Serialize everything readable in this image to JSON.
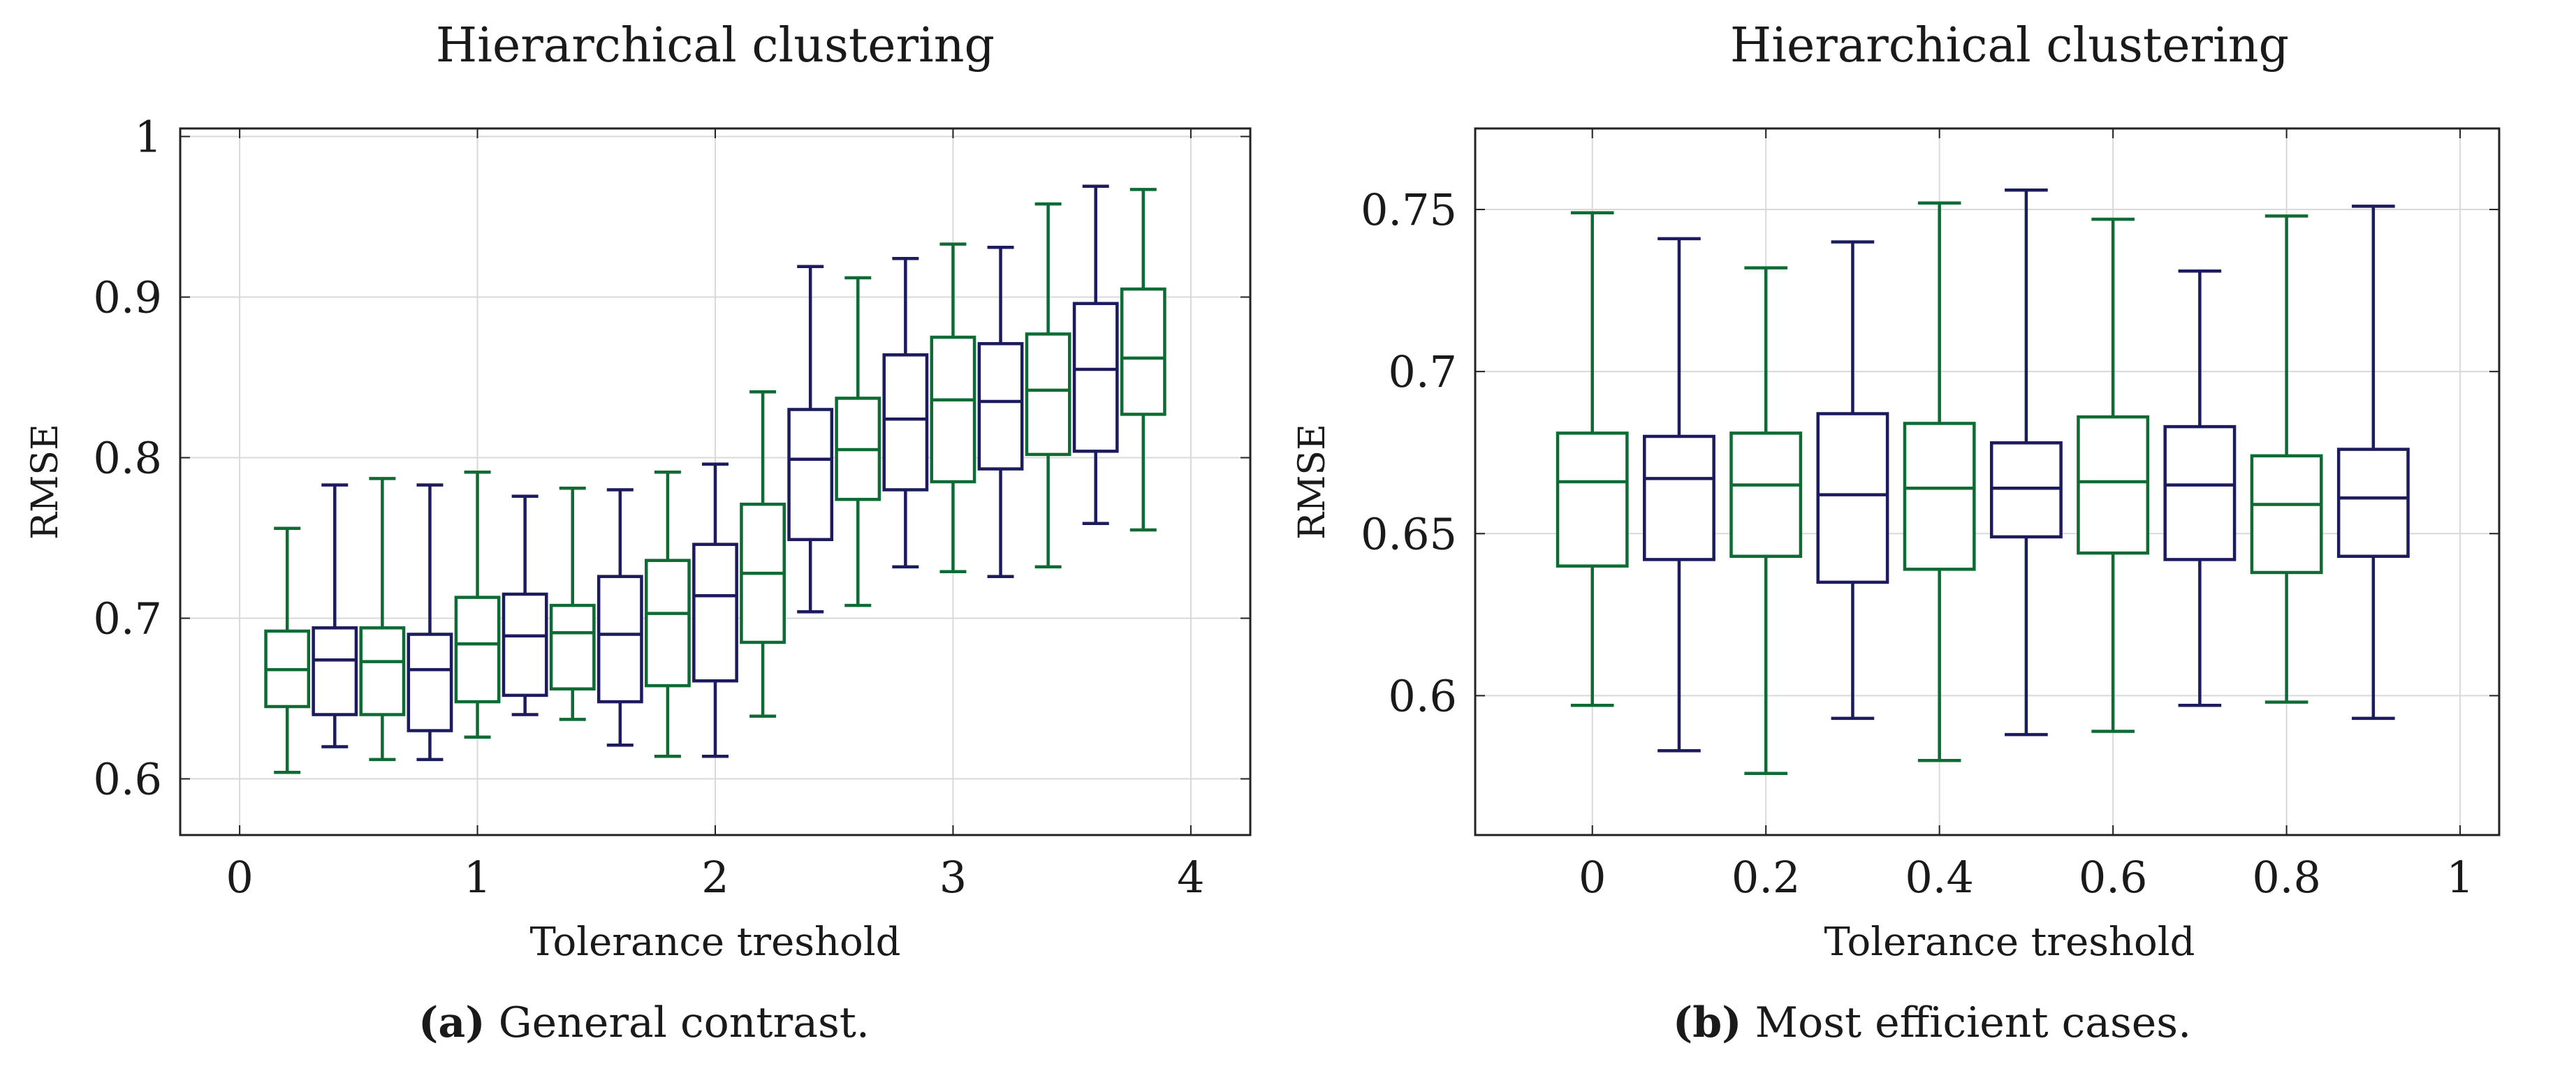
{
  "colors": {
    "green": "#0e6b34",
    "navy": "#1c1b5e",
    "grid": "#d9d9d9",
    "frame": "#222222"
  },
  "chart_data": [
    {
      "type": "box",
      "title": "Hierarchical clustering",
      "xlabel": "Tolerance treshold",
      "ylabel": "RMSE",
      "xlim": [
        -0.25,
        4.25
      ],
      "ylim": [
        0.565,
        1.005
      ],
      "xticks": [
        0,
        1,
        2,
        3,
        4
      ],
      "xtick_labels": [
        "0",
        "1",
        "2",
        "3",
        "4"
      ],
      "yticks": [
        0.6,
        0.7,
        0.8,
        0.9,
        1.0
      ],
      "ytick_labels": [
        "0.6",
        "0.7",
        "0.8",
        "0.9",
        "1"
      ],
      "caption_label": "(a)",
      "caption_text": "General contrast.",
      "box_half_width": 0.09,
      "boxes": [
        {
          "x": 0.2,
          "color": "green",
          "min": 0.604,
          "q1": 0.645,
          "median": 0.668,
          "q3": 0.692,
          "max": 0.756
        },
        {
          "x": 0.4,
          "color": "navy",
          "min": 0.62,
          "q1": 0.64,
          "median": 0.674,
          "q3": 0.694,
          "max": 0.783
        },
        {
          "x": 0.6,
          "color": "green",
          "min": 0.612,
          "q1": 0.64,
          "median": 0.673,
          "q3": 0.694,
          "max": 0.787
        },
        {
          "x": 0.8,
          "color": "navy",
          "min": 0.612,
          "q1": 0.63,
          "median": 0.668,
          "q3": 0.69,
          "max": 0.783
        },
        {
          "x": 1.0,
          "color": "green",
          "min": 0.626,
          "q1": 0.648,
          "median": 0.684,
          "q3": 0.713,
          "max": 0.791
        },
        {
          "x": 1.2,
          "color": "navy",
          "min": 0.64,
          "q1": 0.652,
          "median": 0.689,
          "q3": 0.715,
          "max": 0.776
        },
        {
          "x": 1.4,
          "color": "green",
          "min": 0.637,
          "q1": 0.656,
          "median": 0.691,
          "q3": 0.708,
          "max": 0.781
        },
        {
          "x": 1.6,
          "color": "navy",
          "min": 0.621,
          "q1": 0.648,
          "median": 0.69,
          "q3": 0.726,
          "max": 0.78
        },
        {
          "x": 1.8,
          "color": "green",
          "min": 0.614,
          "q1": 0.658,
          "median": 0.703,
          "q3": 0.736,
          "max": 0.791
        },
        {
          "x": 2.0,
          "color": "navy",
          "min": 0.614,
          "q1": 0.661,
          "median": 0.714,
          "q3": 0.746,
          "max": 0.796
        },
        {
          "x": 2.2,
          "color": "green",
          "min": 0.639,
          "q1": 0.685,
          "median": 0.728,
          "q3": 0.771,
          "max": 0.841
        },
        {
          "x": 2.4,
          "color": "navy",
          "min": 0.704,
          "q1": 0.749,
          "median": 0.799,
          "q3": 0.83,
          "max": 0.919
        },
        {
          "x": 2.6,
          "color": "green",
          "min": 0.708,
          "q1": 0.774,
          "median": 0.805,
          "q3": 0.837,
          "max": 0.912
        },
        {
          "x": 2.8,
          "color": "navy",
          "min": 0.732,
          "q1": 0.78,
          "median": 0.824,
          "q3": 0.864,
          "max": 0.924
        },
        {
          "x": 3.0,
          "color": "green",
          "min": 0.729,
          "q1": 0.785,
          "median": 0.836,
          "q3": 0.875,
          "max": 0.933
        },
        {
          "x": 3.2,
          "color": "navy",
          "min": 0.726,
          "q1": 0.793,
          "median": 0.835,
          "q3": 0.871,
          "max": 0.931
        },
        {
          "x": 3.4,
          "color": "green",
          "min": 0.732,
          "q1": 0.802,
          "median": 0.842,
          "q3": 0.877,
          "max": 0.958
        },
        {
          "x": 3.6,
          "color": "navy",
          "min": 0.759,
          "q1": 0.804,
          "median": 0.855,
          "q3": 0.896,
          "max": 0.969
        },
        {
          "x": 3.8,
          "color": "green",
          "min": 0.755,
          "q1": 0.827,
          "median": 0.862,
          "q3": 0.905,
          "max": 0.967
        }
      ]
    },
    {
      "type": "box",
      "title": "Hierarchical clustering",
      "xlabel": "Tolerance treshold",
      "ylabel": "RMSE",
      "xlim": [
        -0.135,
        1.045
      ],
      "ylim": [
        0.557,
        0.775
      ],
      "xticks": [
        0,
        0.2,
        0.4,
        0.6,
        0.8,
        1.0
      ],
      "xtick_labels": [
        "0",
        "0.2",
        "0.4",
        "0.6",
        "0.8",
        "1"
      ],
      "yticks": [
        0.6,
        0.65,
        0.7,
        0.75
      ],
      "ytick_labels": [
        "0.6",
        "0.65",
        "0.7",
        "0.75"
      ],
      "caption_label": "(b)",
      "caption_text": "Most efficient cases.",
      "box_half_width": 0.04,
      "boxes": [
        {
          "x": 0.0,
          "color": "green",
          "min": 0.597,
          "q1": 0.64,
          "median": 0.666,
          "q3": 0.681,
          "max": 0.749
        },
        {
          "x": 0.1,
          "color": "navy",
          "min": 0.583,
          "q1": 0.642,
          "median": 0.667,
          "q3": 0.68,
          "max": 0.741
        },
        {
          "x": 0.2,
          "color": "green",
          "min": 0.576,
          "q1": 0.643,
          "median": 0.665,
          "q3": 0.681,
          "max": 0.732
        },
        {
          "x": 0.3,
          "color": "navy",
          "min": 0.593,
          "q1": 0.635,
          "median": 0.662,
          "q3": 0.687,
          "max": 0.74
        },
        {
          "x": 0.4,
          "color": "green",
          "min": 0.58,
          "q1": 0.639,
          "median": 0.664,
          "q3": 0.684,
          "max": 0.752
        },
        {
          "x": 0.5,
          "color": "navy",
          "min": 0.588,
          "q1": 0.649,
          "median": 0.664,
          "q3": 0.678,
          "max": 0.756
        },
        {
          "x": 0.6,
          "color": "green",
          "min": 0.589,
          "q1": 0.644,
          "median": 0.666,
          "q3": 0.686,
          "max": 0.747
        },
        {
          "x": 0.7,
          "color": "navy",
          "min": 0.597,
          "q1": 0.642,
          "median": 0.665,
          "q3": 0.683,
          "max": 0.731
        },
        {
          "x": 0.8,
          "color": "green",
          "min": 0.598,
          "q1": 0.638,
          "median": 0.659,
          "q3": 0.674,
          "max": 0.748
        },
        {
          "x": 0.9,
          "color": "navy",
          "min": 0.593,
          "q1": 0.643,
          "median": 0.661,
          "q3": 0.676,
          "max": 0.751
        }
      ]
    }
  ]
}
